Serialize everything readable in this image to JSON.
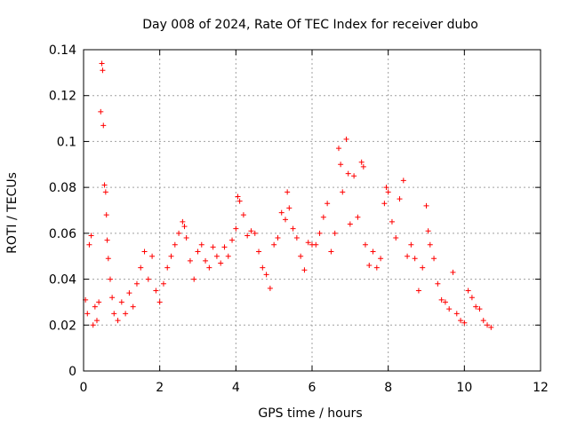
{
  "chart_data": {
    "type": "scatter",
    "title": "Day 008 of 2024, Rate Of TEC Index for receiver dubo",
    "xlabel": "GPS time / hours",
    "ylabel": "ROTI / TECUs",
    "xlim": [
      0,
      12
    ],
    "ylim": [
      0,
      0.14
    ],
    "x_ticks": [
      0,
      2,
      4,
      6,
      8,
      10,
      12
    ],
    "x_tick_labels": [
      "0",
      "2",
      "4",
      "6",
      "8",
      "10",
      "12"
    ],
    "y_ticks": [
      0,
      0.02,
      0.04,
      0.06,
      0.08,
      0.1,
      0.12,
      0.14
    ],
    "y_tick_labels": [
      "0",
      "0.02",
      "0.04",
      "0.06",
      "0.08",
      "0.1",
      "0.12",
      "0.14"
    ],
    "grid": true,
    "marker": "+",
    "color": "#ff0000",
    "series": [
      {
        "name": "ROTI",
        "x": [
          0.05,
          0.1,
          0.15,
          0.2,
          0.25,
          0.3,
          0.35,
          0.4,
          0.45,
          0.48,
          0.5,
          0.52,
          0.55,
          0.58,
          0.6,
          0.62,
          0.65,
          0.7,
          0.75,
          0.8,
          0.9,
          1.0,
          1.1,
          1.2,
          1.3,
          1.4,
          1.5,
          1.6,
          1.7,
          1.8,
          1.9,
          2.0,
          2.1,
          2.2,
          2.3,
          2.4,
          2.5,
          2.6,
          2.65,
          2.7,
          2.8,
          2.9,
          3.0,
          3.1,
          3.2,
          3.3,
          3.4,
          3.5,
          3.6,
          3.7,
          3.8,
          3.9,
          4.0,
          4.05,
          4.1,
          4.2,
          4.3,
          4.4,
          4.5,
          4.6,
          4.7,
          4.8,
          4.9,
          5.0,
          5.1,
          5.2,
          5.3,
          5.35,
          5.4,
          5.5,
          5.6,
          5.7,
          5.8,
          5.9,
          6.0,
          6.1,
          6.2,
          6.3,
          6.4,
          6.5,
          6.6,
          6.7,
          6.75,
          6.8,
          6.9,
          6.95,
          7.0,
          7.1,
          7.2,
          7.3,
          7.35,
          7.4,
          7.5,
          7.6,
          7.7,
          7.8,
          7.9,
          7.95,
          8.0,
          8.1,
          8.2,
          8.3,
          8.4,
          8.5,
          8.6,
          8.7,
          8.8,
          8.9,
          9.0,
          9.05,
          9.1,
          9.2,
          9.3,
          9.4,
          9.5,
          9.6,
          9.7,
          9.8,
          9.9,
          10.0,
          10.1,
          10.2,
          10.3,
          10.4,
          10.5,
          10.6,
          10.7
        ],
        "y": [
          0.031,
          0.025,
          0.055,
          0.059,
          0.02,
          0.028,
          0.022,
          0.03,
          0.113,
          0.134,
          0.131,
          0.107,
          0.081,
          0.078,
          0.068,
          0.057,
          0.049,
          0.04,
          0.032,
          0.025,
          0.022,
          0.03,
          0.025,
          0.034,
          0.028,
          0.038,
          0.045,
          0.052,
          0.04,
          0.05,
          0.035,
          0.03,
          0.038,
          0.045,
          0.05,
          0.055,
          0.06,
          0.065,
          0.063,
          0.058,
          0.048,
          0.04,
          0.052,
          0.055,
          0.048,
          0.045,
          0.054,
          0.05,
          0.047,
          0.054,
          0.05,
          0.057,
          0.062,
          0.076,
          0.074,
          0.068,
          0.059,
          0.061,
          0.06,
          0.052,
          0.045,
          0.042,
          0.036,
          0.055,
          0.058,
          0.069,
          0.066,
          0.078,
          0.071,
          0.062,
          0.058,
          0.05,
          0.044,
          0.056,
          0.055,
          0.055,
          0.06,
          0.067,
          0.073,
          0.052,
          0.06,
          0.097,
          0.09,
          0.078,
          0.101,
          0.086,
          0.064,
          0.085,
          0.067,
          0.091,
          0.089,
          0.055,
          0.046,
          0.052,
          0.045,
          0.049,
          0.073,
          0.08,
          0.078,
          0.065,
          0.058,
          0.075,
          0.083,
          0.05,
          0.055,
          0.049,
          0.035,
          0.045,
          0.072,
          0.061,
          0.055,
          0.049,
          0.038,
          0.031,
          0.03,
          0.027,
          0.043,
          0.025,
          0.022,
          0.021,
          0.035,
          0.032,
          0.028,
          0.027,
          0.022,
          0.02,
          0.019
        ]
      }
    ]
  }
}
